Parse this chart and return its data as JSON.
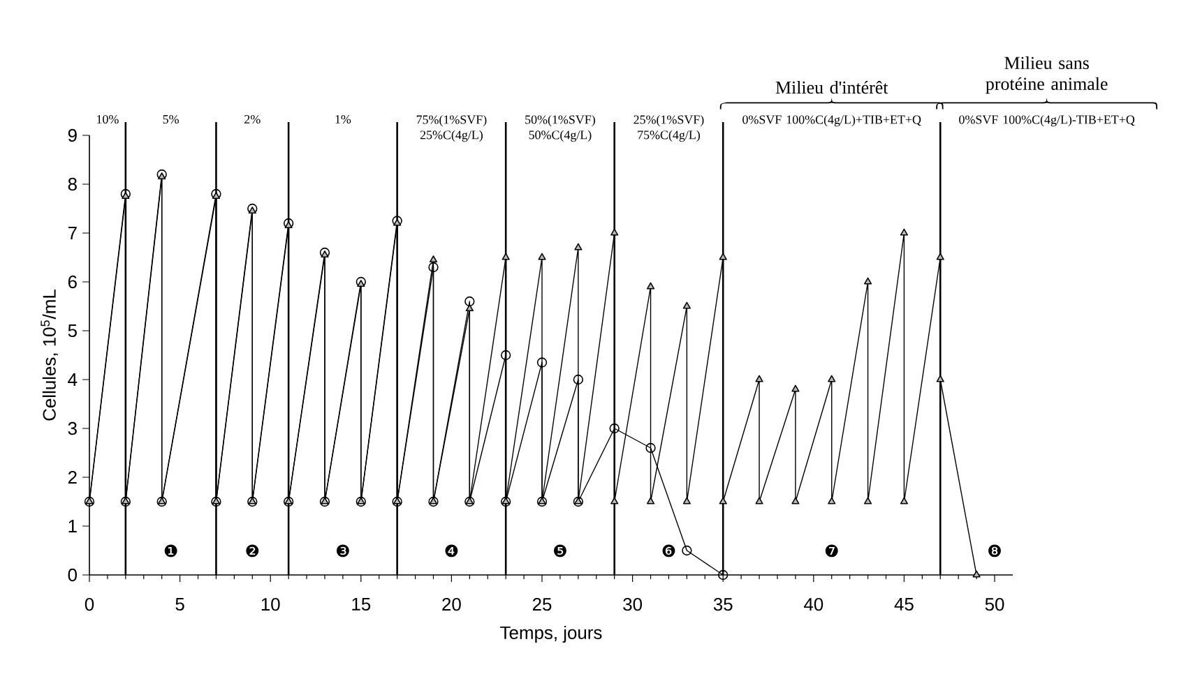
{
  "chart_data": {
    "type": "line",
    "xlabel": "Temps, jours",
    "ylabel": "Cellules, 10$^{5}$/mL",
    "xlim": [
      0,
      51
    ],
    "ylim": [
      0,
      9
    ],
    "xticks": [
      0,
      5,
      10,
      15,
      20,
      25,
      30,
      35,
      40,
      45,
      50
    ],
    "yticks": [
      0,
      1,
      2,
      3,
      4,
      5,
      6,
      7,
      8,
      9
    ],
    "grid": false,
    "series": [
      {
        "color": "#000000",
        "marker": "circle",
        "x": [
          0,
          2,
          2,
          4,
          4,
          7,
          7,
          9,
          9,
          11,
          11,
          13,
          13,
          15,
          15,
          17,
          17,
          19,
          19,
          21,
          21,
          23,
          23,
          25,
          25,
          27,
          27,
          29,
          31,
          33,
          35
        ],
        "values": [
          1.5,
          7.8,
          1.5,
          8.2,
          1.5,
          7.8,
          1.5,
          7.5,
          1.5,
          7.2,
          1.5,
          6.6,
          1.5,
          6.0,
          1.5,
          7.25,
          1.5,
          6.3,
          1.5,
          5.6,
          1.5,
          4.5,
          1.5,
          4.35,
          1.5,
          4.0,
          1.5,
          3.0,
          2.6,
          0.5,
          0
        ]
      },
      {
        "color": "#000000",
        "marker": "triangle",
        "x": [
          0,
          2,
          2,
          4,
          4,
          7,
          7,
          9,
          9,
          11,
          11,
          13,
          13,
          15,
          15,
          17,
          17,
          19,
          19,
          21,
          21,
          23,
          23,
          25,
          25,
          27,
          27,
          29,
          29,
          31,
          31,
          33,
          33,
          35,
          35,
          37,
          37,
          39,
          39,
          41,
          41,
          43,
          43,
          45,
          45,
          47,
          47,
          49
        ],
        "values": [
          1.5,
          7.75,
          1.5,
          8.15,
          1.5,
          7.75,
          1.5,
          7.45,
          1.5,
          7.15,
          1.5,
          6.55,
          1.5,
          5.95,
          1.5,
          7.2,
          1.5,
          6.45,
          1.5,
          5.45,
          1.5,
          6.5,
          1.5,
          6.5,
          1.5,
          6.7,
          1.5,
          7.0,
          1.5,
          5.9,
          1.5,
          5.5,
          1.5,
          6.5,
          1.5,
          4.0,
          1.5,
          3.8,
          1.5,
          4.0,
          1.5,
          6.0,
          1.5,
          7.0,
          1.5,
          6.5,
          4.0,
          0
        ]
      }
    ],
    "ref_lines": [
      {
        "axis": "x",
        "value": 2
      },
      {
        "axis": "x",
        "value": 7
      },
      {
        "axis": "x",
        "value": 11
      },
      {
        "axis": "x",
        "value": 17
      },
      {
        "axis": "x",
        "value": 23
      },
      {
        "axis": "x",
        "value": 29
      },
      {
        "axis": "x",
        "value": 35
      },
      {
        "axis": "x",
        "value": 47
      }
    ],
    "annotations": [
      "10%",
      "5%",
      "2%",
      "1%",
      "75%(1%SVF) 25%C(4g/L)",
      "50%(1%SVF) 50%C(4g/L)",
      "25%(1%SVF) 75%C(4g/L)",
      "0%SVF 100%C(4g/L)+TIB+ET+Q",
      "0%SVF 100%C(4g/L)-TIB+ET+Q",
      "❶",
      "❷",
      "❸",
      "❹",
      "❺",
      "❻",
      "❼",
      "❽",
      "Milieu d'intérêt",
      "Milieu sans protéine animale"
    ]
  }
}
